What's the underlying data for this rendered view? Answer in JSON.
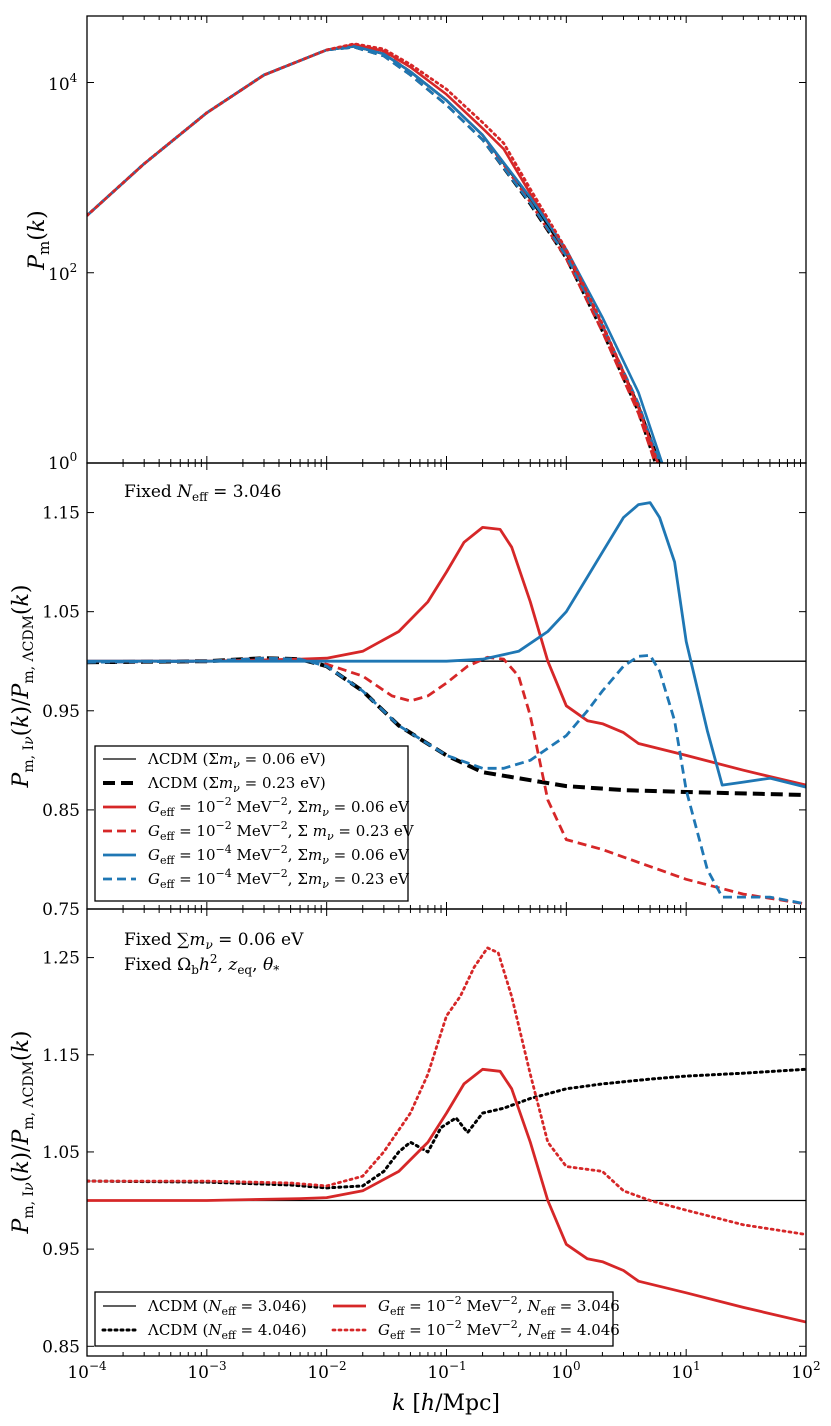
{
  "chart_data": [
    {
      "type": "line",
      "panel": "top",
      "xscale": "log",
      "yscale": "log",
      "xlim": [
        0.0001,
        100
      ],
      "ylim": [
        1,
        50000
      ],
      "xlabel": "",
      "ylabel": "P_m(k)",
      "yticks": [
        1,
        100,
        10000
      ],
      "ytick_labels": [
        "10^0",
        "10^2",
        "10^4"
      ],
      "series": [
        {
          "name": "ΛCDM (Σmν = 0.06 eV)",
          "color": "#000000",
          "dash": "solid",
          "x": [
            0.0001,
            0.0003,
            0.001,
            0.003,
            0.01,
            0.017,
            0.03,
            0.05,
            0.1,
            0.2,
            0.5,
            1,
            2,
            4,
            6
          ],
          "y": [
            400,
            1400,
            4800,
            12000,
            22000,
            24000,
            20000,
            13000,
            6500,
            2800,
            600,
            160,
            28,
            4,
            1
          ]
        },
        {
          "name": "ΛCDM (Σmν = 0.23 eV)",
          "color": "#000000",
          "dash": "dashed",
          "x": [
            0.0001,
            0.0003,
            0.001,
            0.003,
            0.01,
            0.017,
            0.03,
            0.05,
            0.1,
            0.2,
            0.5,
            1,
            2,
            4,
            5.5
          ],
          "y": [
            400,
            1400,
            4800,
            12000,
            22000,
            23500,
            19000,
            12000,
            5800,
            2500,
            520,
            140,
            24,
            3.4,
            1
          ]
        },
        {
          "name": "G_eff = 10^-2 MeV^-2, Σmν = 0.06 eV",
          "color": "#d62728",
          "dash": "solid",
          "x": [
            0.0001,
            0.0003,
            0.001,
            0.003,
            0.01,
            0.017,
            0.03,
            0.05,
            0.1,
            0.2,
            0.3,
            0.5,
            1,
            2,
            4,
            5.8
          ],
          "y": [
            400,
            1400,
            4800,
            12000,
            22000,
            25000,
            21500,
            14500,
            7500,
            3300,
            2000,
            680,
            165,
            28,
            3.8,
            1
          ]
        },
        {
          "name": "G_eff = 10^-2 MeV^-2, Σmν = 0.23 eV",
          "color": "#d62728",
          "dash": "dashed",
          "x": [
            0.0001,
            0.0003,
            0.001,
            0.003,
            0.01,
            0.017,
            0.03,
            0.05,
            0.1,
            0.2,
            0.5,
            1,
            2,
            4,
            5.5
          ],
          "y": [
            400,
            1400,
            4800,
            12000,
            22000,
            24500,
            20500,
            13000,
            6500,
            2800,
            550,
            140,
            24,
            3.3,
            1
          ]
        },
        {
          "name": "G_eff = 10^-4 MeV^-2, Σmν = 0.06 eV",
          "color": "#1f77b4",
          "dash": "solid",
          "x": [
            0.0001,
            0.0003,
            0.001,
            0.003,
            0.01,
            0.017,
            0.03,
            0.05,
            0.1,
            0.2,
            0.5,
            1,
            2,
            4,
            6.3
          ],
          "y": [
            400,
            1400,
            4800,
            12000,
            22000,
            24000,
            20000,
            13000,
            6500,
            2800,
            620,
            175,
            34,
            5.5,
            1
          ]
        },
        {
          "name": "G_eff = 10^-4 MeV^-2, Σmν = 0.23 eV",
          "color": "#1f77b4",
          "dash": "dashed",
          "x": [
            0.0001,
            0.0003,
            0.001,
            0.003,
            0.01,
            0.017,
            0.03,
            0.05,
            0.1,
            0.2,
            0.5,
            1,
            2,
            4,
            6
          ],
          "y": [
            400,
            1400,
            4800,
            12000,
            22000,
            23500,
            19000,
            12000,
            5800,
            2500,
            540,
            150,
            28,
            4.2,
            1
          ]
        },
        {
          "name": "G_eff = 10^-2 MeV^-2, N_eff = 4.046",
          "color": "#d62728",
          "dash": "dotted",
          "x": [
            0.0001,
            0.0003,
            0.001,
            0.003,
            0.01,
            0.017,
            0.03,
            0.05,
            0.1,
            0.2,
            0.3,
            0.5,
            1,
            2,
            4,
            5.8
          ],
          "y": [
            400,
            1400,
            4800,
            12000,
            22000,
            25500,
            22500,
            15500,
            8500,
            3800,
            2300,
            760,
            175,
            29,
            3.9,
            1
          ]
        }
      ]
    },
    {
      "type": "line",
      "panel": "middle",
      "xscale": "log",
      "yscale": "linear",
      "xlim": [
        0.0001,
        100
      ],
      "ylim": [
        0.75,
        1.2
      ],
      "xlabel": "",
      "ylabel": "P_m,Iν(k)/P_m,ΛCDM(k)",
      "yticks": [
        0.75,
        0.85,
        0.95,
        1.05,
        1.15
      ],
      "ytick_labels": [
        "0.75",
        "0.85",
        "0.95",
        "1.05",
        "1.15"
      ],
      "annotation": "Fixed N_eff = 3.046",
      "series": [
        {
          "name": "ΛCDM (Σmν = 0.06 eV)",
          "color": "#000000",
          "dash": "solid",
          "width": 1.3,
          "x": [
            0.0001,
            100
          ],
          "y": [
            1.0,
            1.0
          ]
        },
        {
          "name": "ΛCDM (Σmν = 0.23 eV)",
          "color": "#000000",
          "dash": "thickdash",
          "width": 4,
          "x": [
            0.0001,
            0.001,
            0.003,
            0.006,
            0.01,
            0.02,
            0.04,
            0.1,
            0.2,
            0.5,
            1,
            3,
            10,
            100
          ],
          "y": [
            0.999,
            1.0,
            1.003,
            1.002,
            0.995,
            0.97,
            0.935,
            0.905,
            0.888,
            0.88,
            0.874,
            0.87,
            0.868,
            0.865
          ]
        },
        {
          "name": "G_eff = 10^-2 MeV^-2, Σmν = 0.06 eV",
          "color": "#d62728",
          "dash": "solid",
          "width": 2.8,
          "x": [
            0.0001,
            0.001,
            0.006,
            0.01,
            0.02,
            0.04,
            0.07,
            0.1,
            0.14,
            0.2,
            0.28,
            0.35,
            0.5,
            0.7,
            1,
            1.5,
            2,
            3,
            4,
            10,
            30,
            100
          ],
          "y": [
            1.0,
            1.0,
            1.002,
            1.003,
            1.01,
            1.03,
            1.06,
            1.09,
            1.12,
            1.135,
            1.133,
            1.115,
            1.06,
            1.0,
            0.955,
            0.94,
            0.937,
            0.928,
            0.917,
            0.905,
            0.89,
            0.875
          ]
        },
        {
          "name": "G_eff = 10^-2 MeV^-2, Σmν = 0.23 eV",
          "color": "#d62728",
          "dash": "dashed",
          "width": 2.8,
          "x": [
            0.0001,
            0.001,
            0.003,
            0.006,
            0.01,
            0.02,
            0.035,
            0.05,
            0.07,
            0.1,
            0.15,
            0.22,
            0.3,
            0.4,
            0.5,
            0.7,
            1,
            2,
            4,
            10,
            30,
            100
          ],
          "y": [
            0.999,
            1.0,
            1.003,
            1.002,
            0.997,
            0.985,
            0.965,
            0.96,
            0.965,
            0.978,
            0.995,
            1.004,
            1.002,
            0.985,
            0.945,
            0.86,
            0.82,
            0.81,
            0.797,
            0.78,
            0.765,
            0.755
          ]
        },
        {
          "name": "G_eff = 10^-4 MeV^-2, Σmν = 0.06 eV",
          "color": "#1f77b4",
          "dash": "solid",
          "width": 2.8,
          "x": [
            0.0001,
            0.001,
            0.01,
            0.1,
            0.2,
            0.4,
            0.7,
            1,
            1.5,
            2,
            3,
            4,
            5,
            6,
            8,
            10,
            15,
            20,
            30,
            50,
            100
          ],
          "y": [
            1.0,
            1.0,
            1.0,
            1.0,
            1.002,
            1.01,
            1.03,
            1.05,
            1.085,
            1.11,
            1.145,
            1.158,
            1.16,
            1.145,
            1.1,
            1.02,
            0.93,
            0.875,
            0.878,
            0.882,
            0.873
          ]
        },
        {
          "name": "G_eff = 10^-4 MeV^-2, Σmν = 0.23 eV",
          "color": "#1f77b4",
          "dash": "dashed",
          "width": 2.8,
          "x": [
            0.0001,
            0.001,
            0.003,
            0.006,
            0.01,
            0.02,
            0.04,
            0.1,
            0.2,
            0.3,
            0.5,
            1,
            1.5,
            2,
            3,
            4,
            5,
            6,
            8,
            10,
            15,
            20,
            30,
            50,
            100
          ],
          "y": [
            0.999,
            1.0,
            1.003,
            1.002,
            0.995,
            0.97,
            0.935,
            0.905,
            0.892,
            0.892,
            0.9,
            0.925,
            0.95,
            0.97,
            0.995,
            1.005,
            1.006,
            0.99,
            0.94,
            0.87,
            0.79,
            0.762,
            0.762,
            0.762,
            0.755
          ]
        }
      ]
    },
    {
      "type": "line",
      "panel": "bottom",
      "xscale": "log",
      "yscale": "linear",
      "xlim": [
        0.0001,
        100
      ],
      "ylim": [
        0.84,
        1.3
      ],
      "xlabel": "k [h/Mpc]",
      "ylabel": "P_m,Iν(k)/P_m,ΛCDM(k)",
      "yticks": [
        0.85,
        0.95,
        1.05,
        1.15,
        1.25
      ],
      "ytick_labels": [
        "0.85",
        "0.95",
        "1.05",
        "1.15",
        "1.25"
      ],
      "xticks": [
        0.0001,
        0.001,
        0.01,
        0.1,
        1,
        10,
        100
      ],
      "xtick_labels": [
        "10^-4",
        "10^-3",
        "10^-2",
        "10^-1",
        "10^0",
        "10^1",
        "10^2"
      ],
      "annotation_line1": "Fixed ∑mν = 0.06 eV",
      "annotation_line2": "Fixed Ω_b h², z_eq, θ_*",
      "series": [
        {
          "name": "ΛCDM (N_eff = 3.046)",
          "color": "#000000",
          "dash": "solid",
          "width": 1.3,
          "x": [
            0.0001,
            100
          ],
          "y": [
            1.0,
            1.0
          ]
        },
        {
          "name": "ΛCDM (N_eff = 4.046)",
          "color": "#000000",
          "dash": "dotted",
          "width": 3,
          "x": [
            0.0001,
            0.001,
            0.005,
            0.01,
            0.02,
            0.03,
            0.04,
            0.05,
            0.07,
            0.09,
            0.12,
            0.15,
            0.2,
            0.3,
            0.5,
            1,
            2,
            5,
            10,
            30,
            100
          ],
          "y": [
            1.02,
            1.019,
            1.016,
            1.013,
            1.015,
            1.03,
            1.05,
            1.06,
            1.05,
            1.075,
            1.085,
            1.07,
            1.09,
            1.095,
            1.105,
            1.115,
            1.12,
            1.125,
            1.128,
            1.131,
            1.135
          ]
        },
        {
          "name": "G_eff = 10^-2 MeV^-2, N_eff = 3.046",
          "color": "#d62728",
          "dash": "solid",
          "width": 2.8,
          "x": [
            0.0001,
            0.001,
            0.006,
            0.01,
            0.02,
            0.04,
            0.07,
            0.1,
            0.14,
            0.2,
            0.28,
            0.35,
            0.5,
            0.7,
            1,
            1.5,
            2,
            3,
            4,
            10,
            30,
            100
          ],
          "y": [
            1.0,
            1.0,
            1.002,
            1.003,
            1.01,
            1.03,
            1.06,
            1.09,
            1.12,
            1.135,
            1.133,
            1.115,
            1.06,
            1.0,
            0.955,
            0.94,
            0.937,
            0.928,
            0.917,
            0.905,
            0.89,
            0.875
          ]
        },
        {
          "name": "G_eff = 10^-2 MeV^-2, N_eff = 4.046",
          "color": "#d62728",
          "dash": "dotted",
          "width": 2.8,
          "x": [
            0.0001,
            0.001,
            0.005,
            0.01,
            0.02,
            0.03,
            0.05,
            0.07,
            0.1,
            0.13,
            0.17,
            0.22,
            0.27,
            0.35,
            0.5,
            0.7,
            1,
            2,
            3,
            5,
            10,
            30,
            100
          ],
          "y": [
            1.02,
            1.02,
            1.018,
            1.015,
            1.025,
            1.05,
            1.09,
            1.13,
            1.19,
            1.21,
            1.24,
            1.26,
            1.255,
            1.21,
            1.13,
            1.06,
            1.035,
            1.03,
            1.01,
            1.0,
            0.99,
            0.975,
            0.965
          ]
        }
      ]
    }
  ],
  "legends": {
    "middle": [
      "ΛCDM (Σmν = 0.06 eV)",
      "ΛCDM (Σmν = 0.23 eV)",
      "G_eff = 10^-2 MeV^-2, Σmν = 0.06 eV",
      "G_eff = 10^-2 MeV^-2, Σ mν = 0.23 eV",
      "G_eff = 10^-4 MeV^-2, Σmν = 0.06 eV",
      "G_eff = 10^-4 MeV^-2, Σmν = 0.23 eV"
    ],
    "bottom": [
      "ΛCDM (N_eff = 3.046)",
      "ΛCDM (N_eff = 4.046)",
      "G_eff = 10^-2 MeV^-2, N_eff = 3.046",
      "G_eff = 10^-2 MeV^-2, N_eff = 4.046"
    ]
  },
  "colors": {
    "black": "#000000",
    "red": "#d62728",
    "blue": "#1f77b4"
  }
}
